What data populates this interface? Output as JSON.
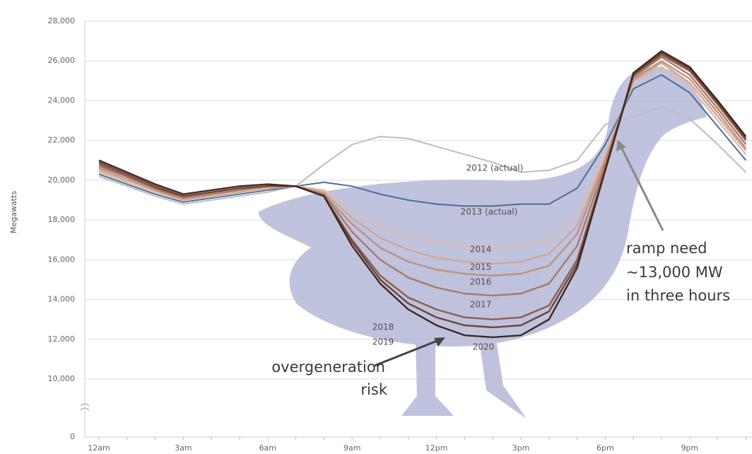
{
  "chart_data": {
    "type": "line",
    "y_label": "Megawatts",
    "categories": [
      "12am",
      null,
      null,
      "3am",
      null,
      null,
      "6am",
      null,
      null,
      "9am",
      null,
      null,
      "12pm",
      null,
      null,
      "3pm",
      null,
      null,
      "6pm",
      null,
      null,
      "9pm",
      null,
      null
    ],
    "ylim": [
      0,
      28000
    ],
    "y_break": 10000,
    "yticks": [
      0,
      {
        "value": 10000,
        "label": "10,000"
      },
      {
        "value": 12000,
        "label": "12,000"
      },
      {
        "value": 14000,
        "label": "14,000"
      },
      {
        "value": 16000,
        "label": "16,000"
      },
      {
        "value": 18000,
        "label": "18,000"
      },
      {
        "value": 20000,
        "label": "20,000"
      },
      {
        "value": 22000,
        "label": "22,000"
      },
      {
        "value": 24000,
        "label": "24,000"
      },
      {
        "value": 26000,
        "label": "26,000"
      },
      {
        "value": 28000,
        "label": "28,000"
      }
    ],
    "grid": true,
    "series": [
      {
        "name": "2012 (actual)",
        "color": "#b9bec6",
        "values": [
          20200,
          19700,
          19200,
          18800,
          19000,
          19200,
          19400,
          19700,
          20800,
          21800,
          22200,
          22100,
          21700,
          21300,
          20900,
          20400,
          20500,
          21000,
          22800,
          23200,
          23700,
          23100,
          21800,
          20400
        ]
      },
      {
        "name": "2013 (actual)",
        "color": "#4b6f95",
        "values": [
          20300,
          19800,
          19300,
          18900,
          19100,
          19300,
          19500,
          19700,
          19900,
          19700,
          19300,
          19000,
          18800,
          18700,
          18700,
          18800,
          18800,
          19600,
          21800,
          24600,
          25300,
          24400,
          22700,
          21000
        ]
      },
      {
        "name": "2014",
        "color": "#dcbcae",
        "values": [
          20400,
          19900,
          19400,
          19000,
          19200,
          19400,
          19600,
          19700,
          19500,
          18500,
          17700,
          17200,
          16900,
          16700,
          16600,
          16700,
          17000,
          18200,
          21300,
          24900,
          25700,
          24700,
          23000,
          21300
        ]
      },
      {
        "name": "2015",
        "color": "#cfa795",
        "values": [
          20500,
          20000,
          19500,
          19000,
          19200,
          19400,
          19600,
          19700,
          19400,
          18100,
          17100,
          16500,
          16100,
          15900,
          15800,
          15900,
          16300,
          17700,
          21100,
          25000,
          25900,
          24900,
          23200,
          21500
        ]
      },
      {
        "name": "2016",
        "color": "#bf917d",
        "values": [
          20600,
          20100,
          19500,
          19100,
          19300,
          19500,
          19700,
          19700,
          19300,
          17800,
          16600,
          15900,
          15500,
          15300,
          15200,
          15300,
          15700,
          17300,
          21000,
          25100,
          26000,
          25100,
          23400,
          21600
        ]
      },
      {
        "name": "2017",
        "color": "#ab7965",
        "values": [
          20700,
          20200,
          19600,
          19100,
          19300,
          19500,
          19700,
          19700,
          19300,
          17400,
          16000,
          15100,
          14600,
          14300,
          14200,
          14300,
          14800,
          16700,
          20800,
          25200,
          26200,
          25300,
          23600,
          21800
        ]
      },
      {
        "name": "2018",
        "color": "#8f5d4b",
        "values": [
          20800,
          20200,
          19600,
          19200,
          19400,
          19600,
          19700,
          19700,
          19200,
          17000,
          15200,
          14100,
          13500,
          13100,
          13000,
          13100,
          13700,
          16000,
          20600,
          25300,
          26300,
          25500,
          23800,
          22000
        ]
      },
      {
        "name": "2019",
        "color": "#6f4335",
        "values": [
          20900,
          20300,
          19700,
          19200,
          19400,
          19600,
          19700,
          19700,
          19200,
          16900,
          15000,
          13800,
          13100,
          12700,
          12600,
          12700,
          13400,
          15800,
          20500,
          25300,
          26400,
          25600,
          23900,
          22100
        ]
      },
      {
        "name": "2020",
        "color": "#3d2822",
        "values": [
          21000,
          20400,
          19800,
          19300,
          19500,
          19700,
          19800,
          19700,
          19200,
          16700,
          14800,
          13500,
          12700,
          12200,
          12100,
          12200,
          13000,
          15600,
          20500,
          25400,
          26500,
          25700,
          24000,
          22200
        ]
      }
    ],
    "annotations": [
      {
        "lines": [
          "overgeneration",
          "risk"
        ]
      },
      {
        "lines": [
          "ramp need",
          "~13,000 MW",
          "in three hours"
        ]
      }
    ]
  }
}
